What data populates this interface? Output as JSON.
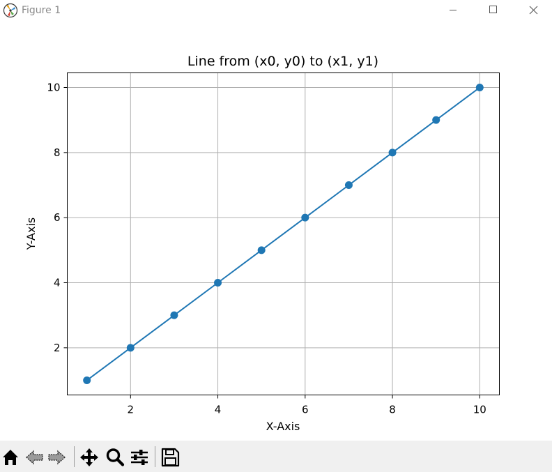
{
  "window": {
    "title": "Figure 1",
    "icons": [
      "app-icon",
      "minimize-icon",
      "maximize-icon",
      "close-icon"
    ]
  },
  "toolbar": {
    "buttons": [
      "home-icon",
      "back-icon",
      "forward-icon",
      "pan-icon",
      "zoom-icon",
      "configure-subplots-icon",
      "save-icon"
    ]
  },
  "chart_data": {
    "type": "line",
    "title": "Line from (x0, y0) to (x1, y1)",
    "xlabel": "X-Axis",
    "ylabel": "Y-Axis",
    "x": [
      1,
      2,
      3,
      4,
      5,
      6,
      7,
      8,
      9,
      10
    ],
    "series": [
      {
        "values": [
          1,
          2,
          3,
          4,
          5,
          6,
          7,
          8,
          9,
          10
        ],
        "color": "#1f77b4",
        "marker": "circle"
      }
    ],
    "xlim": [
      0.55,
      10.45
    ],
    "ylim": [
      0.55,
      10.45
    ],
    "xticks": [
      2,
      4,
      6,
      8,
      10
    ],
    "yticks": [
      2,
      4,
      6,
      8,
      10
    ],
    "xtick_labels": [
      "2",
      "4",
      "6",
      "8",
      "10"
    ],
    "ytick_labels": [
      "2",
      "4",
      "6",
      "8",
      "10"
    ],
    "grid": true,
    "grid_color": "#b0b0b0"
  }
}
